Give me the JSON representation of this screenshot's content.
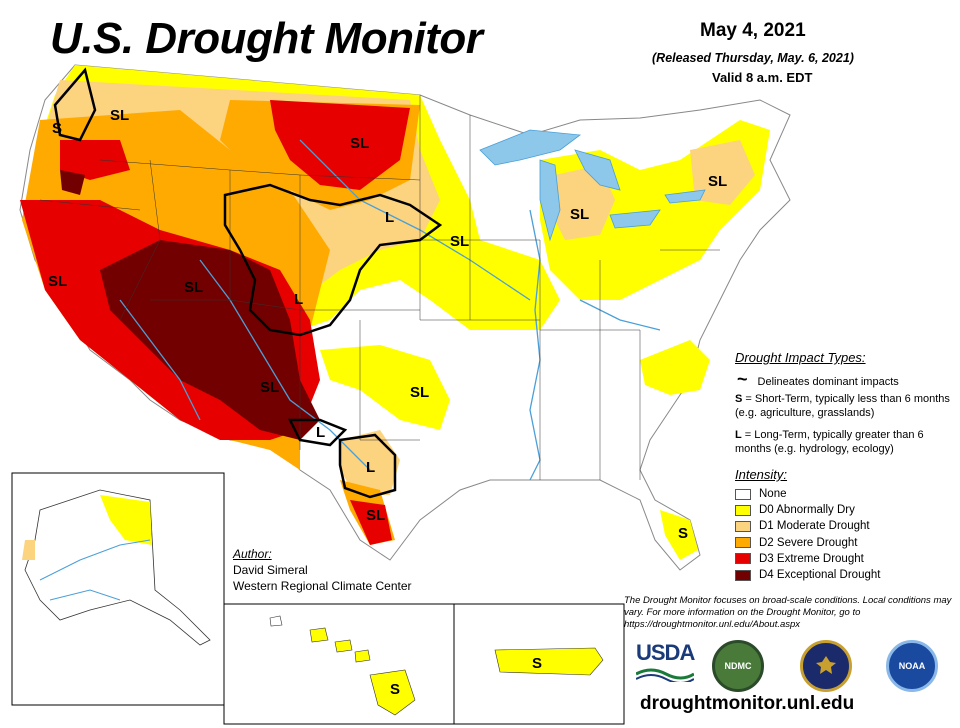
{
  "header": {
    "title": "U.S. Drought Monitor",
    "date": "May 4, 2021",
    "released": "(Released Thursday, May. 6, 2021)",
    "valid": "Valid 8 a.m. EDT"
  },
  "impact_types": {
    "title": "Drought Impact Types:",
    "delineates": "Delineates dominant impacts",
    "short_term_key": "S",
    "short_term_text": " = Short-Term, typically less than 6 months (e.g. agriculture, grasslands)",
    "long_term_key": "L",
    "long_term_text": " = Long-Term, typically greater than 6 months (e.g. hydrology, ecology)"
  },
  "intensity": {
    "title": "Intensity:",
    "items": [
      {
        "label": "None",
        "color": "#ffffff"
      },
      {
        "label": "D0 Abnormally Dry",
        "color": "#ffff00"
      },
      {
        "label": "D1 Moderate Drought",
        "color": "#fcd37f"
      },
      {
        "label": "D2 Severe Drought",
        "color": "#ffaa00"
      },
      {
        "label": "D3 Extreme Drought",
        "color": "#e60000"
      },
      {
        "label": "D4 Exceptional Drought",
        "color": "#730000"
      }
    ]
  },
  "author": {
    "label": "Author:",
    "name": "David Simeral",
    "org": "Western Regional Climate Center"
  },
  "disclaimer": "The Drought Monitor focuses on broad-scale conditions. Local conditions may vary. For more information on the Drought Monitor, go to https://droughtmonitor.unl.edu/About.aspx",
  "url": "droughtmonitor.unl.edu",
  "logos": {
    "usda": "USDA",
    "ndmc": "NDMC",
    "commerce_icon": "eagle-seal-icon",
    "noaa": "NOAA"
  },
  "map_labels": [
    {
      "text": "SL"
    },
    {
      "text": "S"
    },
    {
      "text": "SL"
    },
    {
      "text": "L"
    },
    {
      "text": "SL"
    },
    {
      "text": "SL"
    },
    {
      "text": "SL"
    },
    {
      "text": "L"
    },
    {
      "text": "SL"
    },
    {
      "text": "SL"
    },
    {
      "text": "L"
    },
    {
      "text": "SL"
    },
    {
      "text": "L"
    },
    {
      "text": "SL"
    },
    {
      "text": "S"
    },
    {
      "text": "S"
    },
    {
      "text": "S"
    },
    {
      "text": "SL"
    }
  ],
  "colors": {
    "none": "#ffffff",
    "d0": "#ffff00",
    "d1": "#fcd37f",
    "d2": "#ffaa00",
    "d3": "#e60000",
    "d4": "#730000",
    "water": "#8dc7ea",
    "river": "#4a9fd8"
  }
}
